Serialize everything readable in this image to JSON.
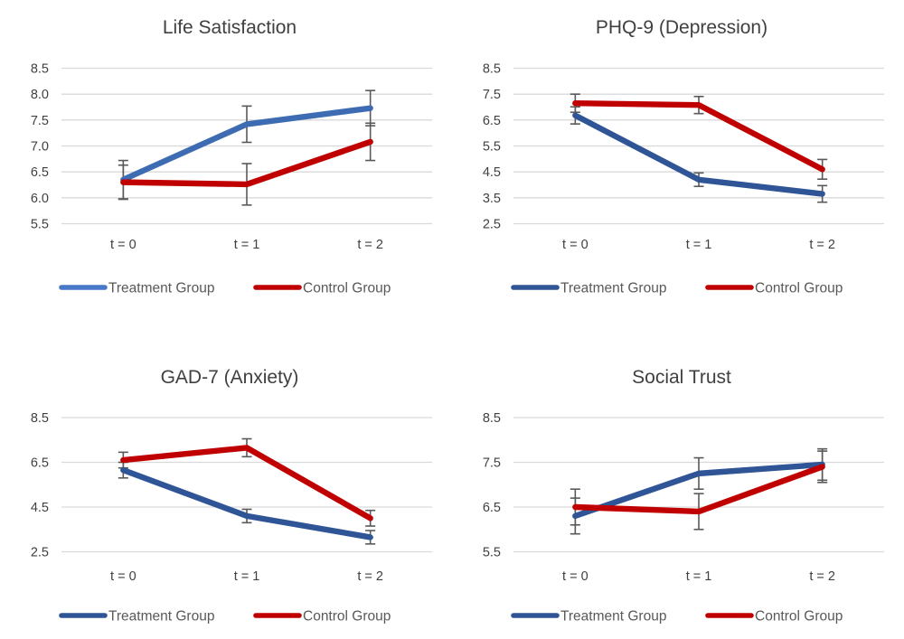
{
  "figure": {
    "background": "#ffffff"
  },
  "styles": {
    "grid_color": "#d9d9d9",
    "tick_label_color": "#404040",
    "title_color": "#404040",
    "x_label_color": "#404040",
    "legend_text_color": "#595959",
    "error_bar_color": "#595959"
  },
  "chart_data": [
    {
      "type": "line",
      "title": "Life Satisfaction",
      "categories": [
        "t = 0",
        "t = 1",
        "t = 2"
      ],
      "ylim": [
        5.5,
        8.5
      ],
      "y_ticks": [
        8.5,
        8.0,
        7.5,
        7.0,
        6.5,
        6.0,
        5.5
      ],
      "y_tick_labels": [
        "8.5",
        "8.0",
        "7.5",
        "7.0",
        "6.5",
        "6.0",
        "5.5"
      ],
      "grid": true,
      "legend_position": "bottom",
      "error_bars": true,
      "series": [
        {
          "name": "Treatment Group",
          "color": "#3e6cb3",
          "legend_color": "#4878c8",
          "values": [
            6.35,
            7.42,
            7.73
          ],
          "error": [
            0.37,
            0.35,
            0.34
          ]
        },
        {
          "name": "Control Group",
          "color": "#c00000",
          "legend_color": "#c00000",
          "values": [
            6.3,
            6.26,
            7.08
          ],
          "error": [
            0.33,
            0.4,
            0.36
          ]
        }
      ]
    },
    {
      "type": "line",
      "title": "PHQ-9 (Depression)",
      "categories": [
        "t = 0",
        "t = 1",
        "t = 2"
      ],
      "ylim": [
        2.5,
        8.5
      ],
      "y_ticks": [
        8.5,
        7.5,
        6.5,
        5.5,
        4.5,
        3.5,
        2.5
      ],
      "y_tick_labels": [
        "8.5",
        "7.5",
        "6.5",
        "5.5",
        "4.5",
        "3.5",
        "2.5"
      ],
      "grid": true,
      "legend_position": "bottom",
      "error_bars": true,
      "series": [
        {
          "name": "Treatment Group",
          "color": "#2f5597",
          "legend_color": "#2f5597",
          "values": [
            6.68,
            4.2,
            3.65
          ],
          "error": [
            0.33,
            0.26,
            0.32
          ]
        },
        {
          "name": "Control Group",
          "color": "#c00000",
          "legend_color": "#c00000",
          "values": [
            7.15,
            7.08,
            4.6
          ],
          "error": [
            0.35,
            0.33,
            0.38
          ]
        }
      ]
    },
    {
      "type": "line",
      "title": "GAD-7 (Anxiety)",
      "categories": [
        "t = 0",
        "t = 1",
        "t = 2"
      ],
      "ylim": [
        2.5,
        8.5
      ],
      "y_ticks": [
        8.5,
        6.5,
        4.5,
        2.5
      ],
      "y_tick_labels": [
        "8.5",
        "6.5",
        "4.5",
        "2.5"
      ],
      "grid": true,
      "legend_position": "bottom",
      "error_bars": true,
      "series": [
        {
          "name": "Treatment Group",
          "color": "#2f5597",
          "legend_color": "#2f5597",
          "values": [
            6.15,
            4.1,
            3.15
          ],
          "error": [
            0.35,
            0.3,
            0.3
          ]
        },
        {
          "name": "Control Group",
          "color": "#c00000",
          "legend_color": "#c00000",
          "values": [
            6.6,
            7.15,
            4.0
          ],
          "error": [
            0.35,
            0.4,
            0.35
          ]
        }
      ]
    },
    {
      "type": "line",
      "title": "Social Trust",
      "categories": [
        "t = 0",
        "t = 1",
        "t = 2"
      ],
      "ylim": [
        5.5,
        8.5
      ],
      "y_ticks": [
        8.5,
        7.5,
        6.5,
        5.5
      ],
      "y_tick_labels": [
        "8.5",
        "7.5",
        "6.5",
        "5.5"
      ],
      "grid": true,
      "legend_position": "bottom",
      "error_bars": true,
      "series": [
        {
          "name": "Treatment Group",
          "color": "#2f5597",
          "legend_color": "#2f5597",
          "values": [
            6.3,
            7.25,
            7.45
          ],
          "error": [
            0.4,
            0.35,
            0.35
          ]
        },
        {
          "name": "Control Group",
          "color": "#c00000",
          "legend_color": "#c00000",
          "values": [
            6.5,
            6.4,
            7.4
          ],
          "error": [
            0.4,
            0.4,
            0.35
          ]
        }
      ]
    }
  ]
}
